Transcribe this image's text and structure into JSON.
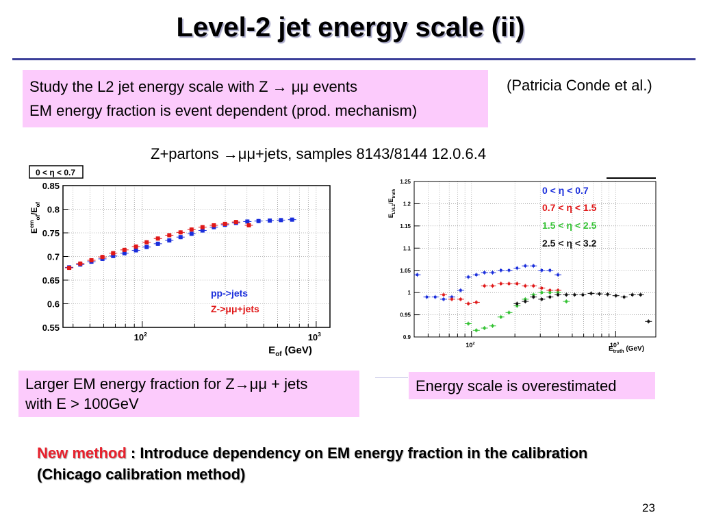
{
  "slide": {
    "title": "Level-2 jet energy scale (ii)",
    "box1": {
      "line1": "Study the L2 jet energy scale with Z → μμ events",
      "line2": "EM energy fraction is event dependent (prod. mechanism)"
    },
    "credit": "(Patricia Conde et al.)",
    "subhead": "Z+partons →μμ+jets, samples 8143/8144 12.0.6.4",
    "box2": {
      "line1": "Larger EM energy fraction for Z→μμ + jets",
      "line2": "with E > 100GeV"
    },
    "box3": "Energy scale is overestimated",
    "method": {
      "highlight": "New method",
      "rest": " : Introduce dependency on EM energy fraction in the calibration",
      "line2": "(Chicago calibration method)"
    },
    "page_number": "23"
  },
  "chart_data": [
    {
      "type": "scatter",
      "eta_label": "0 < η < 0.7",
      "ylabel": "E_of^em/E_of",
      "xlabel": "E_of (GeV)",
      "xscale": "log",
      "xlim": [
        35,
        1200
      ],
      "ylim": [
        0.55,
        0.85
      ],
      "yticks": [
        "0.55",
        "0.6",
        "0.65",
        "0.7",
        "0.75",
        "0.8",
        "0.85"
      ],
      "xticks": [
        {
          "value": 100,
          "base": "10",
          "exp": "2"
        },
        {
          "value": 1000,
          "base": "10",
          "exp": "3"
        }
      ],
      "grid": true,
      "legend_position": "bottom-right",
      "colors": {
        "blue": "#1a2edb",
        "red": "#e01818"
      },
      "series": [
        {
          "name": "pp->jets",
          "color": "#1a2edb",
          "points": [
            [
              38,
              0.677
            ],
            [
              44,
              0.683
            ],
            [
              51,
              0.689
            ],
            [
              59,
              0.695
            ],
            [
              68,
              0.701
            ],
            [
              79,
              0.707
            ],
            [
              92,
              0.713
            ],
            [
              106,
              0.72
            ],
            [
              123,
              0.727
            ],
            [
              143,
              0.734
            ],
            [
              166,
              0.741
            ],
            [
              192,
              0.748
            ],
            [
              222,
              0.755
            ],
            [
              258,
              0.762
            ],
            [
              299,
              0.767
            ],
            [
              346,
              0.771
            ],
            [
              402,
              0.774
            ],
            [
              466,
              0.775
            ],
            [
              541,
              0.776
            ],
            [
              627,
              0.777
            ],
            [
              727,
              0.778
            ]
          ]
        },
        {
          "name": "Z->μμ+jets",
          "color": "#e01818",
          "points": [
            [
              38,
              0.676
            ],
            [
              44,
              0.685
            ],
            [
              51,
              0.692
            ],
            [
              59,
              0.699
            ],
            [
              68,
              0.707
            ],
            [
              79,
              0.714
            ],
            [
              92,
              0.721
            ],
            [
              106,
              0.73
            ],
            [
              123,
              0.738
            ],
            [
              143,
              0.745
            ],
            [
              166,
              0.751
            ],
            [
              192,
              0.757
            ],
            [
              222,
              0.762
            ],
            [
              258,
              0.766
            ],
            [
              299,
              0.769
            ],
            [
              346,
              0.773
            ],
            [
              410,
              0.766
            ]
          ]
        }
      ]
    },
    {
      "type": "scatter",
      "ylabel": "E_LVL2/E_truth",
      "xlabel": "E_truth (GeV)",
      "xscale": "log",
      "xlim": [
        40,
        1900
      ],
      "ylim": [
        0.9,
        1.25
      ],
      "yticks": [
        "0.9",
        "0.95",
        "1",
        "1.05",
        "1.1",
        "1.15",
        "1.2",
        "1.25"
      ],
      "xticks": [
        {
          "value": 100,
          "base": "10",
          "exp": "2"
        },
        {
          "value": 1000,
          "base": "10",
          "exp": "3"
        }
      ],
      "grid": true,
      "legend_position": "top-right",
      "series": [
        {
          "name": "0 < η < 0.7",
          "color": "#1a2edb",
          "points": [
            [
              42,
              1.04
            ],
            [
              49,
              0.99
            ],
            [
              56,
              0.99
            ],
            [
              64,
              0.985
            ],
            [
              73,
              0.99
            ],
            [
              84,
              1.005
            ],
            [
              95,
              1.035
            ],
            [
              108,
              1.04
            ],
            [
              123,
              1.045
            ],
            [
              140,
              1.045
            ],
            [
              160,
              1.05
            ],
            [
              182,
              1.05
            ],
            [
              207,
              1.055
            ],
            [
              236,
              1.06
            ],
            [
              269,
              1.06
            ],
            [
              307,
              1.05
            ],
            [
              350,
              1.05
            ],
            [
              398,
              1.04
            ]
          ]
        },
        {
          "name": "0.7 < η < 1.5",
          "color": "#e01818",
          "points": [
            [
              64,
              0.995
            ],
            [
              73,
              0.985
            ],
            [
              84,
              0.985
            ],
            [
              95,
              0.975
            ],
            [
              108,
              0.978
            ],
            [
              123,
              1.015
            ],
            [
              140,
              1.015
            ],
            [
              160,
              1.02
            ],
            [
              182,
              1.02
            ],
            [
              207,
              1.02
            ],
            [
              236,
              1.015
            ],
            [
              269,
              1.015
            ],
            [
              307,
              1.01
            ],
            [
              350,
              1.005
            ],
            [
              398,
              1.005
            ]
          ]
        },
        {
          "name": "1.5 < η < 2.5",
          "color": "#33c233",
          "points": [
            [
              95,
              0.93
            ],
            [
              108,
              0.915
            ],
            [
              123,
              0.92
            ],
            [
              140,
              0.925
            ],
            [
              160,
              0.945
            ],
            [
              182,
              0.955
            ],
            [
              207,
              0.97
            ],
            [
              236,
              0.985
            ],
            [
              269,
              0.995
            ],
            [
              307,
              1.0
            ],
            [
              350,
              1.0
            ],
            [
              398,
              1.0
            ],
            [
              455,
              0.98
            ]
          ]
        },
        {
          "name": "2.5 < η < 3.2",
          "color": "#111111",
          "points": [
            [
              207,
              0.975
            ],
            [
              236,
              0.98
            ],
            [
              269,
              0.99
            ],
            [
              307,
              0.985
            ],
            [
              350,
              0.99
            ],
            [
              398,
              0.995
            ],
            [
              455,
              0.995
            ],
            [
              519,
              0.995
            ],
            [
              592,
              0.995
            ],
            [
              676,
              0.998
            ],
            [
              771,
              0.997
            ],
            [
              880,
              0.996
            ],
            [
              1004,
              0.993
            ],
            [
              1145,
              0.99
            ],
            [
              1306,
              0.995
            ],
            [
              1490,
              0.995
            ],
            [
              1690,
              0.935
            ]
          ]
        }
      ]
    }
  ]
}
